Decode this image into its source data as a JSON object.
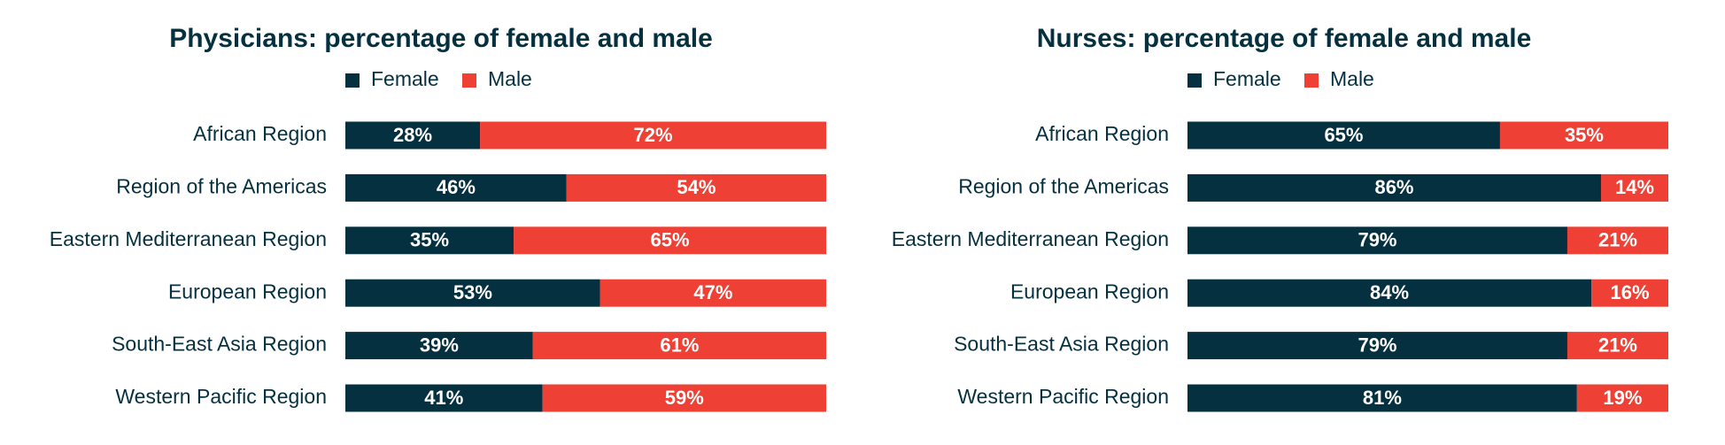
{
  "colors": {
    "female": "#04303f",
    "male": "#ee4034",
    "text": "#04303f"
  },
  "chart_data": [
    {
      "type": "bar",
      "orientation": "horizontal",
      "stacked": true,
      "percent_stacked": true,
      "title": "Physicians: percentage of female and male",
      "legend_position": "top",
      "categories": [
        "African Region",
        "Region of the Americas",
        "Eastern Mediterranean Region",
        "European Region",
        "South-East Asia Region",
        "Western Pacific Region"
      ],
      "series": [
        {
          "name": "Female",
          "values": [
            28,
            46,
            35,
            53,
            39,
            41
          ],
          "labels": [
            "28%",
            "46%",
            "35%",
            "53%",
            "39%",
            "41%"
          ]
        },
        {
          "name": "Male",
          "values": [
            72,
            54,
            65,
            47,
            61,
            59
          ],
          "labels": [
            "72%",
            "54%",
            "65%",
            "47%",
            "61%",
            "59%"
          ]
        }
      ],
      "xlim": [
        0,
        100
      ],
      "grid": false
    },
    {
      "type": "bar",
      "orientation": "horizontal",
      "stacked": true,
      "percent_stacked": true,
      "title": "Nurses: percentage of female and male",
      "legend_position": "top",
      "categories": [
        "African Region",
        "Region of the Americas",
        "Eastern Mediterranean Region",
        "European Region",
        "South-East Asia Region",
        "Western Pacific Region"
      ],
      "series": [
        {
          "name": "Female",
          "values": [
            65,
            86,
            79,
            84,
            79,
            81
          ],
          "labels": [
            "65%",
            "86%",
            "79%",
            "84%",
            "79%",
            "81%"
          ]
        },
        {
          "name": "Male",
          "values": [
            35,
            14,
            21,
            16,
            21,
            19
          ],
          "labels": [
            "35%",
            "14%",
            "21%",
            "16%",
            "21%",
            "19%"
          ]
        }
      ],
      "xlim": [
        0,
        100
      ],
      "grid": false
    }
  ]
}
